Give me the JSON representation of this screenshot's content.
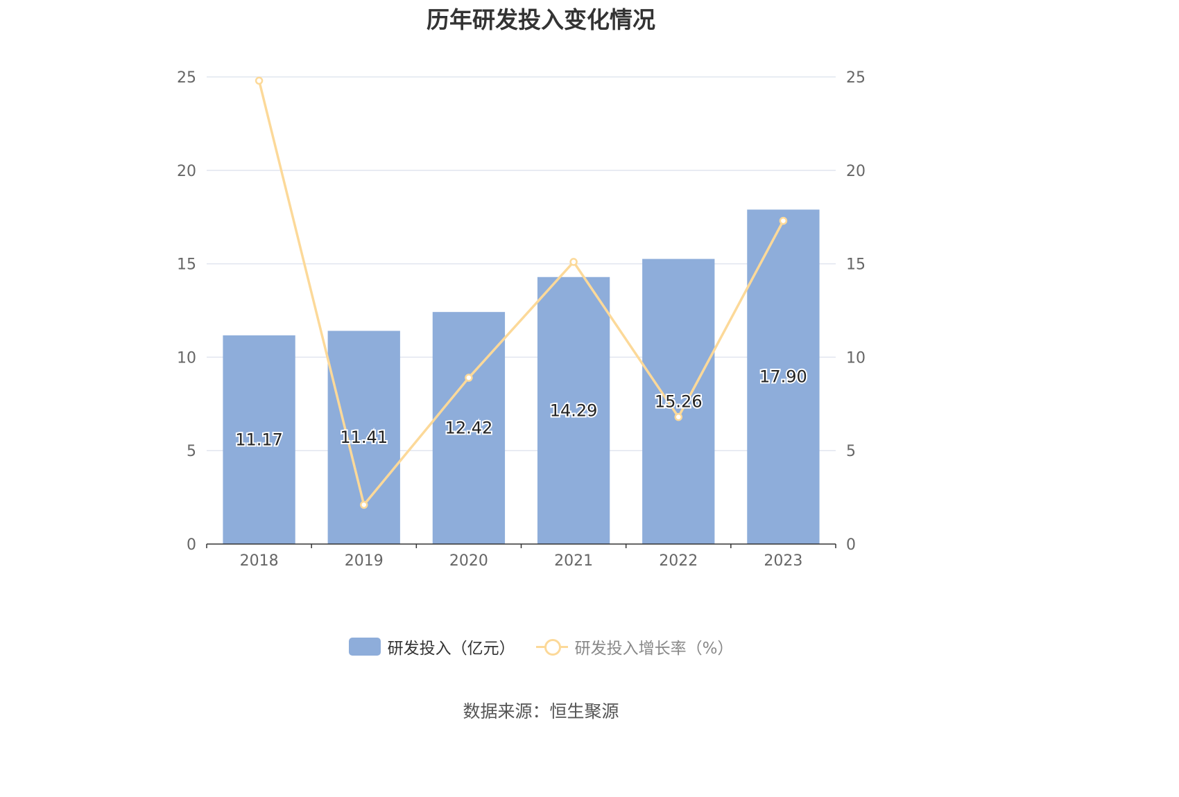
{
  "title": "历年研发投入变化情况",
  "source": "数据来源：恒生聚源",
  "legend": {
    "bar_label": "研发投入（亿元）",
    "line_label": "研发投入增长率（%）"
  },
  "colors": {
    "bar": "#8eadda",
    "line": "#fcd999",
    "grid": "#e1e5ef",
    "axis": "#333333"
  },
  "chart_data": {
    "type": "bar",
    "categories": [
      "2018",
      "2019",
      "2020",
      "2021",
      "2022",
      "2023"
    ],
    "series": [
      {
        "name": "研发投入（亿元）",
        "type": "bar",
        "axis": "left",
        "values": [
          11.17,
          11.41,
          12.42,
          14.29,
          15.26,
          17.9
        ],
        "labels": [
          "11.17",
          "11.41",
          "12.42",
          "14.29",
          "15.26",
          "17.90"
        ]
      },
      {
        "name": "研发投入增长率（%）",
        "type": "line",
        "axis": "right",
        "values": [
          24.8,
          2.1,
          8.9,
          15.1,
          6.8,
          17.3
        ]
      }
    ],
    "ylim_left": [
      0,
      25
    ],
    "ylim_right": [
      0,
      25
    ],
    "yticks_left": [
      "0",
      "5",
      "10",
      "15",
      "20",
      "25"
    ],
    "yticks_right": [
      "0",
      "5",
      "10",
      "15",
      "20",
      "25"
    ],
    "grid": true,
    "legend_position": "bottom"
  }
}
